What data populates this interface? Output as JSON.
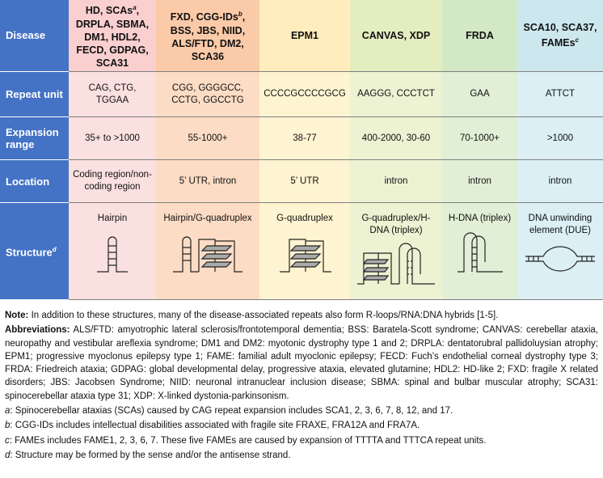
{
  "table": {
    "row_labels": [
      [
        {
          "t": "Disease"
        }
      ],
      [
        {
          "t": "Repeat unit"
        }
      ],
      [
        {
          "t": "Expansion range"
        }
      ],
      [
        {
          "t": "Location"
        }
      ],
      [
        {
          "t": "Structure"
        },
        {
          "sup": "d"
        }
      ]
    ],
    "columns": [
      {
        "disease": [
          {
            "t": "HD, SCAs"
          },
          {
            "sup": "a"
          },
          {
            "t": ", DRPLA, SBMA, DM1, HDL2, FECD, GDPAG, SCA31"
          }
        ],
        "repeat_unit": "CAG, CTG, TGGAA",
        "expansion_range": "35+ to >1000",
        "location": "Coding region/non-coding region",
        "structure": "Hairpin"
      },
      {
        "disease": [
          {
            "t": "FXD, CGG-IDs"
          },
          {
            "sup": "b"
          },
          {
            "t": ", BSS, JBS, NIID, ALS/FTD, DM2, SCA36"
          }
        ],
        "repeat_unit": "CGG, GGGGCC, CCTG, GGCCTG",
        "expansion_range": "55-1000+",
        "location": "5’ UTR, intron",
        "structure": "Hairpin/G-quadruplex"
      },
      {
        "disease": [
          {
            "t": "EPM1"
          }
        ],
        "repeat_unit": "CCCCGCCCCGCG",
        "expansion_range": "38-77",
        "location": "5’ UTR",
        "structure": "G-quadruplex"
      },
      {
        "disease": [
          {
            "t": "CANVAS, XDP"
          }
        ],
        "repeat_unit": "AAGGG, CCCTCT",
        "expansion_range": "400-2000, 30-60",
        "location": "intron",
        "structure": "G-quadruplex/H-DNA (triplex)"
      },
      {
        "disease": [
          {
            "t": "FRDA"
          }
        ],
        "repeat_unit": "GAA",
        "expansion_range": "70-1000+",
        "location": "intron",
        "structure": "H-DNA (triplex)"
      },
      {
        "disease": [
          {
            "t": "SCA10, SCA37, FAMEs"
          },
          {
            "sup": "c"
          }
        ],
        "repeat_unit": "ATTCT",
        "expansion_range": ">1000",
        "location": "intron",
        "structure": "DNA unwinding element (DUE)"
      }
    ]
  },
  "notes": [
    {
      "label": "Note:",
      "text": " In addition to these structures, many of the disease-associated repeats also form R-loops/RNA:DNA hybrids [1-5]."
    },
    {
      "label": "Abbreviations:",
      "text": " ALS/FTD: amyotrophic lateral sclerosis/frontotemporal dementia; BSS: Baratela-Scott syndrome; CANVAS: cerebellar ataxia, neuropathy and vestibular areflexia syndrome; DM1 and DM2: myotonic dystrophy type 1 and 2; DRPLA: dentatorubral pallidoluysian atrophy; EPM1; progressive myoclonus epilepsy type 1; FAME: familial adult myoclonic epilepsy; FECD: Fuch’s endothelial corneal dystrophy type 3; FRDA: Friedreich ataxia; GDPAG: global developmental delay, progressive ataxia, elevated glutamine; HDL2: HD-like 2; FXD: fragile X related disorders; JBS: Jacobsen Syndrome; NIID: neuronal intranuclear inclusion disease; SBMA: spinal and bulbar muscular atrophy; SCA31: spinocerebellar ataxia type 31; XDP: X-linked dystonia-parkinsonism."
    }
  ],
  "footnotes": [
    {
      "label": "a",
      "text": ": Spinocerebellar ataxias (SCAs) caused by CAG repeat expansion includes SCA1, 2, 3, 6, 7, 8, 12, and 17."
    },
    {
      "label": "b",
      "text": ": CGG-IDs includes intellectual disabilities associated with fragile site FRAXE, FRA12A and FRA7A."
    },
    {
      "label": "c",
      "text": ": FAMEs includes FAME1, 2, 3, 6, 7. These five FAMEs are caused by expansion of TTTTA and TTTCA repeat units."
    },
    {
      "label": "d",
      "text": ": Structure may be formed by the sense and/or the antisense strand."
    }
  ]
}
